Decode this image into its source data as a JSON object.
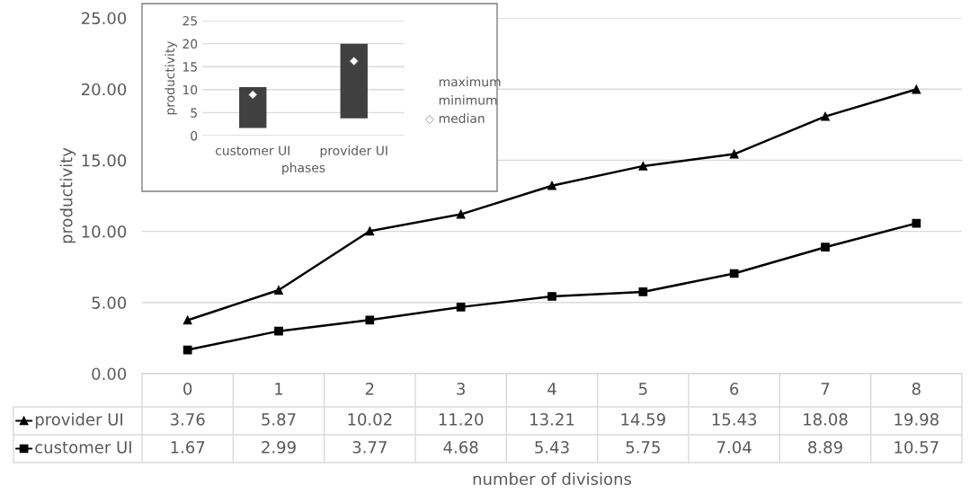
{
  "chart_data": [
    {
      "type": "line",
      "xlabel": "number of divisions",
      "ylabel": "productivity",
      "categories": [
        "0",
        "1",
        "2",
        "3",
        "4",
        "5",
        "6",
        "7",
        "8"
      ],
      "ylim": [
        0,
        25
      ],
      "yticks": [
        {
          "value": 0,
          "label": "0.00"
        },
        {
          "value": 5,
          "label": "5.00"
        },
        {
          "value": 10,
          "label": "10.00"
        },
        {
          "value": 15,
          "label": "15.00"
        },
        {
          "value": 20,
          "label": "20.00"
        },
        {
          "value": 25,
          "label": "25.00"
        }
      ],
      "grid": "y",
      "legend": "bottom left",
      "series": [
        {
          "name": "provider UI",
          "color": "#000000",
          "marker": "triangle",
          "values": [
            3.76,
            5.87,
            10.02,
            11.2,
            13.21,
            14.59,
            15.43,
            18.08,
            19.98
          ],
          "value_labels": [
            "3.76",
            "5.87",
            "10.02",
            "11.20",
            "13.21",
            "14.59",
            "15.43",
            "18.08",
            "19.98"
          ]
        },
        {
          "name": "customer UI",
          "color": "#000000",
          "marker": "square",
          "values": [
            1.67,
            2.99,
            3.77,
            4.68,
            5.43,
            5.75,
            7.04,
            8.89,
            10.57
          ],
          "value_labels": [
            "1.67",
            "2.99",
            "3.77",
            "4.68",
            "5.43",
            "5.75",
            "7.04",
            "8.89",
            "10.57"
          ]
        }
      ]
    },
    {
      "type": "bar",
      "xlabel": "phases",
      "ylabel": "productivity",
      "categories": [
        "customer UI",
        "provider UI"
      ],
      "ylim": [
        0,
        25
      ],
      "yticks": [
        0,
        5,
        10,
        15,
        20,
        25
      ],
      "grid": "y",
      "legend": "right",
      "annotations": [
        "maximum",
        "minimum"
      ],
      "series": [
        {
          "type": "bar",
          "color": "#404040",
          "base": [
            1.67,
            3.76
          ],
          "values": [
            8.9,
            16.2
          ]
        },
        {
          "name": "median",
          "type": "scatter",
          "marker": "diamond",
          "color": "#ffffff",
          "values": [
            8.9,
            16.2
          ]
        }
      ]
    }
  ]
}
